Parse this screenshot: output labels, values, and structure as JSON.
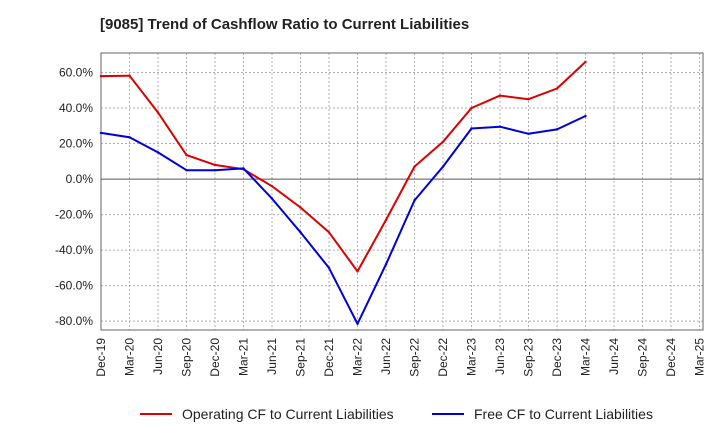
{
  "chart_data": {
    "type": "line",
    "title": "[9085]  Trend of Cashflow Ratio to Current Liabilities",
    "xlabel": "",
    "ylabel": "",
    "categories": [
      "Dec-19",
      "Mar-20",
      "Jun-20",
      "Sep-20",
      "Dec-20",
      "Mar-21",
      "Jun-21",
      "Sep-21",
      "Dec-21",
      "Mar-22",
      "Jun-22",
      "Sep-22",
      "Dec-22",
      "Mar-23",
      "Jun-23",
      "Sep-23",
      "Dec-23",
      "Mar-24",
      "Jun-24",
      "Sep-24",
      "Dec-24",
      "Mar-25"
    ],
    "ylim": [
      -85,
      71
    ],
    "yticks": [
      60,
      40,
      20,
      0,
      -20,
      -40,
      -60,
      -80
    ],
    "ytick_labels": [
      "60.0%",
      "40.0%",
      "20.0%",
      "0.0%",
      "-20.0%",
      "-40.0%",
      "-60.0%",
      "-80.0%"
    ],
    "grid": true,
    "legend_position": "bottom",
    "series": [
      {
        "name": "Operating CF to Current Liabilities",
        "color": "#dd0000",
        "values": [
          58.0,
          58.2,
          37.5,
          13.5,
          8.0,
          5.5,
          -4.0,
          -16.0,
          -30.0,
          -52.0,
          -23.0,
          7.0,
          21.0,
          40.0,
          47.0,
          45.0,
          51.0,
          66.0,
          null,
          null,
          null,
          null
        ]
      },
      {
        "name": "Free CF to Current Liabilities",
        "color": "#0000dd",
        "values": [
          26.0,
          23.5,
          15.0,
          5.0,
          5.0,
          6.0,
          -11.0,
          -30.0,
          -50.0,
          -81.5,
          -48.0,
          -12.0,
          7.0,
          28.5,
          29.5,
          25.5,
          28.0,
          35.5,
          null,
          null,
          null,
          null
        ]
      }
    ]
  }
}
